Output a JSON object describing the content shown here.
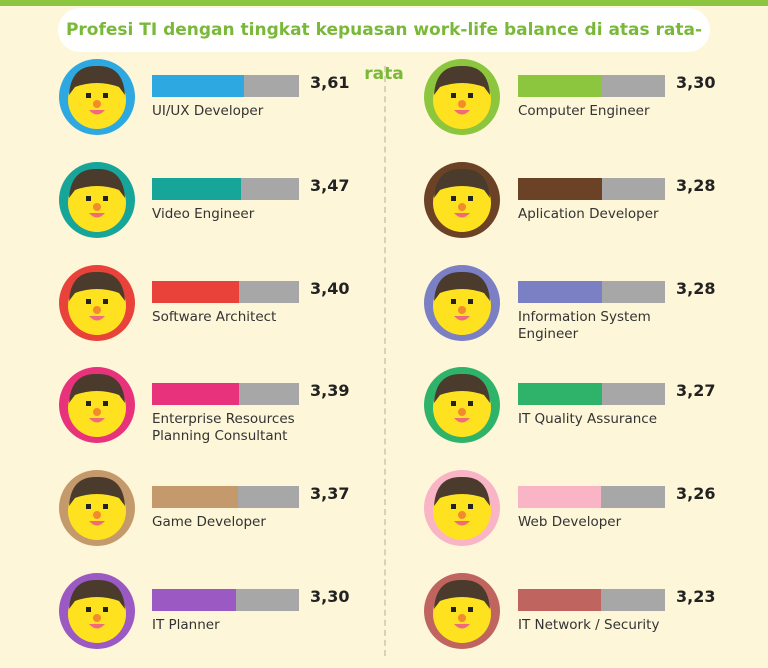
{
  "chart_data": {
    "type": "bar",
    "title": "Profesi TI dengan tingkat kepuasan work-life balance di atas rata-rata",
    "categories": [
      "UI/UX Developer",
      "Video Engineer",
      "Software Architect",
      "Enterprise Resources Planning Consultant",
      "Game Developer",
      "IT Planner",
      "Computer Engineer",
      "Aplication Developer",
      "Information System Engineer",
      "IT Quality Assurance",
      "Web Developer",
      "IT Network / Security"
    ],
    "values": [
      3.61,
      3.47,
      3.4,
      3.39,
      3.37,
      3.3,
      3.3,
      3.28,
      3.28,
      3.27,
      3.26,
      3.23
    ],
    "value_labels": [
      "3,61",
      "3,47",
      "3,40",
      "3,39",
      "3,37",
      "3,30",
      "3,30",
      "3,28",
      "3,28",
      "3,27",
      "3,26",
      "3,23"
    ],
    "colors": [
      "#2ea8e0",
      "#17a59a",
      "#e8423a",
      "#e8337c",
      "#c49a6c",
      "#9b59c4",
      "#8cc63e",
      "#6b4226",
      "#7b7fc4",
      "#2fb36b",
      "#f9b4c6",
      "#c0645f"
    ],
    "xlim": [
      0,
      5.75
    ]
  }
}
